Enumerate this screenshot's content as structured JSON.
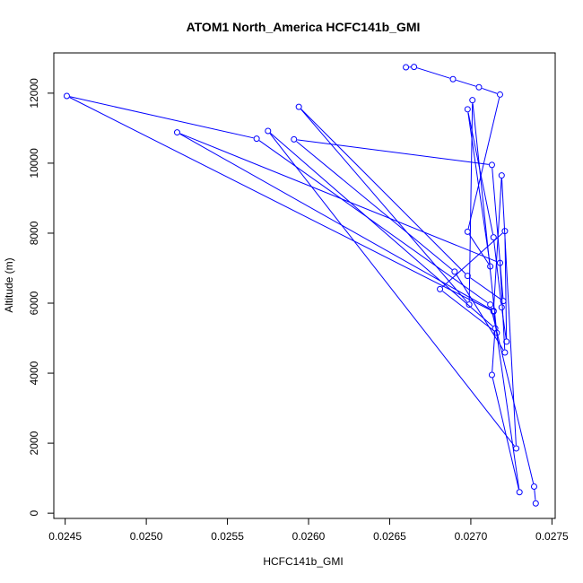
{
  "chart_data": {
    "type": "line",
    "title": "ATOM1 North_America HCFC141b_GMI",
    "xlabel": "HCFC141b_GMI",
    "ylabel": "Altitude (m)",
    "xlim": [
      0.02443,
      0.02752
    ],
    "ylim": [
      -150,
      13150
    ],
    "xticks": [
      "0.0245",
      "0.0250",
      "0.0255",
      "0.0260",
      "0.0265",
      "0.0270",
      "0.0275"
    ],
    "yticks": [
      "0",
      "2000",
      "4000",
      "6000",
      "8000",
      "10000",
      "12000"
    ],
    "series": [
      {
        "color": "#0000ff",
        "marker": "open-circle",
        "points": [
          {
            "x": 0.0274,
            "y": 280
          },
          {
            "x": 0.02739,
            "y": 760
          },
          {
            "x": 0.02712,
            "y": 5960
          },
          {
            "x": 0.02568,
            "y": 10700
          },
          {
            "x": 0.02451,
            "y": 11920
          },
          {
            "x": 0.02714,
            "y": 5760
          },
          {
            "x": 0.0273,
            "y": 600
          },
          {
            "x": 0.02713,
            "y": 3950
          },
          {
            "x": 0.02715,
            "y": 5280
          },
          {
            "x": 0.02575,
            "y": 10920
          },
          {
            "x": 0.02728,
            "y": 1850
          },
          {
            "x": 0.02719,
            "y": 9650
          },
          {
            "x": 0.02714,
            "y": 5780
          },
          {
            "x": 0.02519,
            "y": 10880
          },
          {
            "x": 0.02718,
            "y": 7150
          },
          {
            "x": 0.02721,
            "y": 4590
          },
          {
            "x": 0.0269,
            "y": 6900
          },
          {
            "x": 0.02591,
            "y": 10680
          },
          {
            "x": 0.02713,
            "y": 9950
          },
          {
            "x": 0.0272,
            "y": 6060
          },
          {
            "x": 0.02698,
            "y": 6780
          },
          {
            "x": 0.02594,
            "y": 11610
          },
          {
            "x": 0.02699,
            "y": 5960
          },
          {
            "x": 0.02701,
            "y": 11800
          },
          {
            "x": 0.02716,
            "y": 5150
          },
          {
            "x": 0.02681,
            "y": 6400
          },
          {
            "x": 0.02721,
            "y": 8060
          },
          {
            "x": 0.02722,
            "y": 4900
          },
          {
            "x": 0.02719,
            "y": 5880
          },
          {
            "x": 0.02714,
            "y": 7880
          },
          {
            "x": 0.02698,
            "y": 11540
          },
          {
            "x": 0.02712,
            "y": 7050
          },
          {
            "x": 0.02698,
            "y": 8040
          },
          {
            "x": 0.02718,
            "y": 11960
          },
          {
            "x": 0.02705,
            "y": 12170
          },
          {
            "x": 0.02689,
            "y": 12400
          },
          {
            "x": 0.02665,
            "y": 12750
          },
          {
            "x": 0.0266,
            "y": 12740
          }
        ]
      }
    ]
  }
}
